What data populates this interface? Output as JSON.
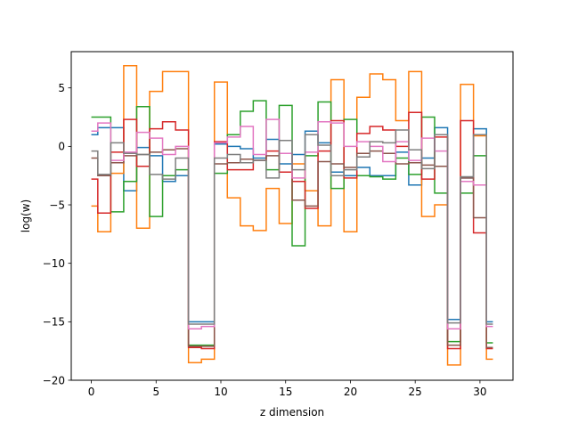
{
  "chart_data": {
    "type": "line",
    "drawstyle": "steps-mid",
    "title": "",
    "xlabel": "z dimension",
    "ylabel": "log(w)",
    "xlim": [
      -1.55,
      32.55
    ],
    "ylim": [
      -20,
      8.1
    ],
    "xticks": [
      0,
      5,
      10,
      15,
      20,
      25,
      30
    ],
    "yticks": [
      -20,
      -15,
      -10,
      -5,
      0,
      5
    ],
    "grid": false,
    "legend": "none",
    "x": [
      0,
      1,
      2,
      3,
      4,
      5,
      6,
      7,
      8,
      9,
      10,
      11,
      12,
      13,
      14,
      15,
      16,
      17,
      18,
      19,
      20,
      21,
      22,
      23,
      24,
      25,
      26,
      27,
      28,
      29,
      30,
      31
    ],
    "series": [
      {
        "color": "#1f77b4",
        "values": [
          1.0,
          1.6,
          1.6,
          -3.8,
          -0.1,
          -0.8,
          -3.0,
          -2.5,
          -15.0,
          -15.0,
          0.2,
          0.0,
          -0.2,
          -1.0,
          0.6,
          -1.5,
          -0.7,
          1.3,
          0.3,
          -2.2,
          -2.5,
          -1.8,
          -2.5,
          -2.5,
          -0.5,
          -3.3,
          -1.0,
          1.6,
          -14.8,
          -2.7,
          1.5,
          -15.0
        ]
      },
      {
        "color": "#ff7f0e",
        "values": [
          -5.1,
          -7.3,
          -2.3,
          6.9,
          -7.0,
          4.7,
          6.4,
          6.4,
          -18.5,
          -18.2,
          5.5,
          -4.4,
          -6.8,
          -7.2,
          -3.6,
          -6.6,
          -1.5,
          -3.8,
          -6.8,
          5.7,
          -7.3,
          4.2,
          6.2,
          5.7,
          2.2,
          6.4,
          -6.0,
          -5.0,
          -18.7,
          5.3,
          0.9,
          -18.2
        ]
      },
      {
        "color": "#2ca02c",
        "values": [
          2.5,
          2.5,
          -5.6,
          -3.0,
          3.4,
          -6.0,
          -2.5,
          -2.0,
          -17.0,
          -17.0,
          -2.3,
          1.0,
          3.0,
          3.9,
          -2.0,
          3.5,
          -8.5,
          -0.8,
          3.8,
          -3.6,
          2.3,
          -2.5,
          -2.6,
          -2.8,
          -1.0,
          -2.4,
          2.5,
          -4.0,
          -16.7,
          -4.0,
          -0.8,
          -16.8
        ]
      },
      {
        "color": "#d62728",
        "values": [
          -2.8,
          -5.7,
          -0.5,
          2.3,
          -1.7,
          1.5,
          2.1,
          1.4,
          -17.2,
          -17.3,
          0.4,
          -2.0,
          -2.0,
          -1.2,
          -0.4,
          -2.2,
          -3.0,
          -5.3,
          -0.4,
          2.2,
          -2.7,
          1.1,
          1.7,
          1.4,
          0.0,
          2.9,
          -2.8,
          0.8,
          -17.3,
          2.2,
          -7.4,
          -17.3
        ]
      },
      {
        "color": "#8c564b",
        "values": [
          -1.0,
          -2.5,
          -1.4,
          -0.8,
          -0.7,
          -0.5,
          -0.3,
          -0.2,
          -17.1,
          -17.1,
          -1.5,
          -1.4,
          -1.1,
          -1.2,
          -0.8,
          -0.6,
          -4.6,
          -5.1,
          -1.3,
          -1.5,
          -1.8,
          -0.6,
          -0.4,
          -0.6,
          -1.5,
          -1.4,
          -1.6,
          -1.7,
          -17.0,
          -2.7,
          -6.1,
          -17.2
        ]
      },
      {
        "color": "#e377c2",
        "values": [
          1.3,
          2.0,
          -1.2,
          -0.5,
          1.2,
          0.7,
          -0.7,
          0.0,
          -15.6,
          -15.4,
          0.3,
          0.8,
          1.7,
          -0.7,
          2.3,
          -0.6,
          -2.7,
          -0.5,
          2.1,
          2.0,
          0.0,
          0.4,
          0.0,
          -1.3,
          0.4,
          -1.2,
          0.7,
          -0.4,
          -15.6,
          -3.0,
          -3.3,
          -15.4
        ]
      },
      {
        "color": "#7f7f7f",
        "values": [
          -0.4,
          -2.4,
          0.3,
          -0.6,
          -0.7,
          -2.4,
          -2.8,
          -1.0,
          -15.2,
          -15.2,
          -1.0,
          -0.7,
          -1.4,
          -1.2,
          -2.7,
          0.5,
          -2.0,
          1.0,
          0.1,
          -2.5,
          -2.0,
          -0.9,
          0.4,
          0.3,
          1.4,
          -0.3,
          -1.9,
          1.0,
          -15.1,
          -2.6,
          1.0,
          -15.2
        ]
      }
    ]
  }
}
